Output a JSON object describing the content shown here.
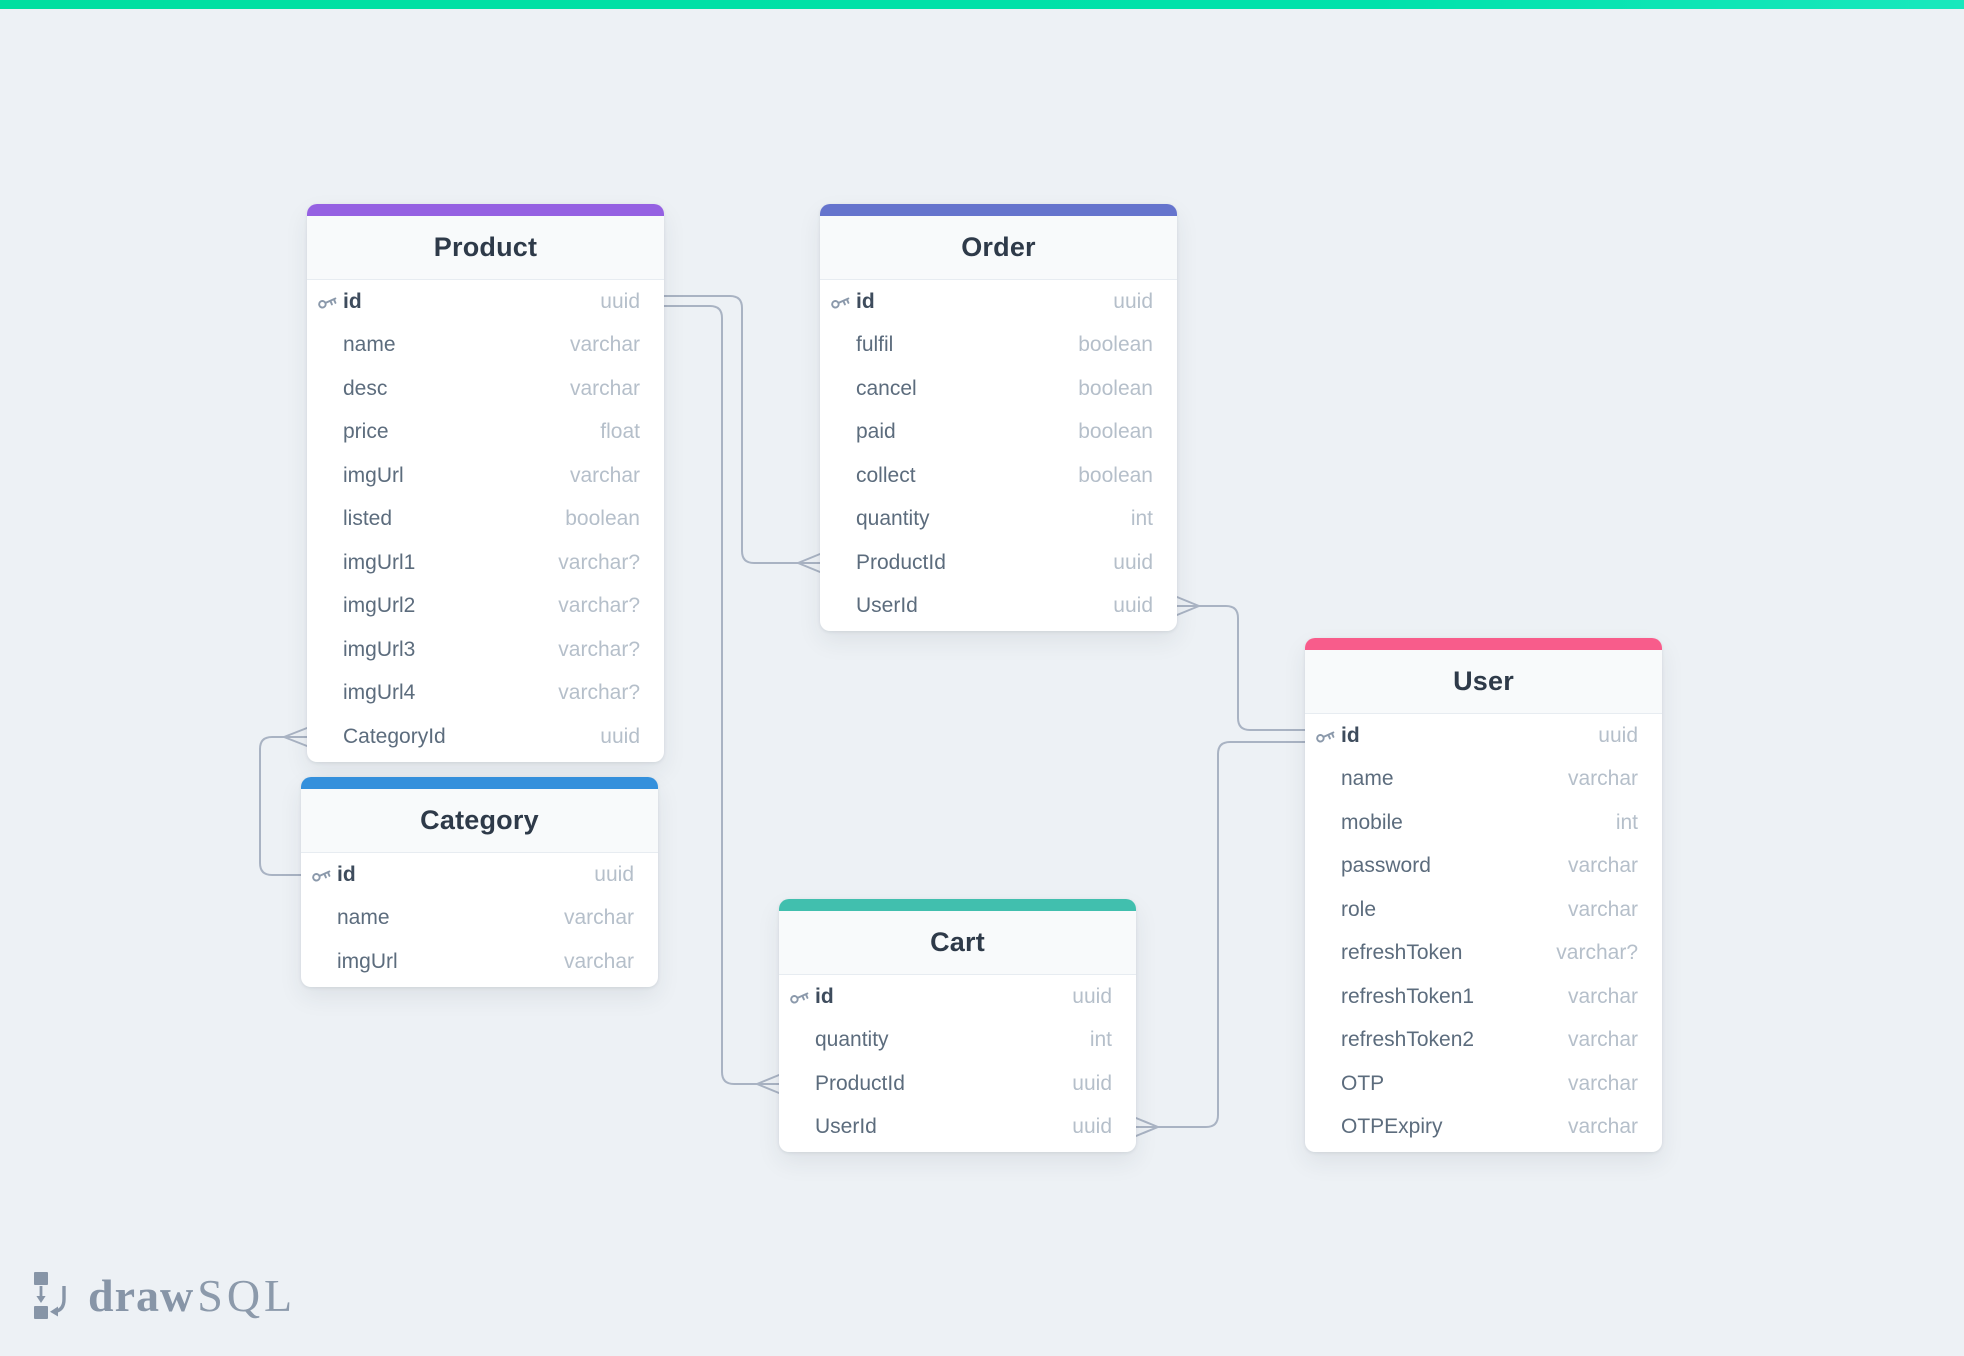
{
  "app": {
    "name": "drawSQL",
    "logo_draw": "draw",
    "logo_sql": "SQL"
  },
  "canvas": {
    "background_color": "#edf1f5",
    "top_bar_color": "#00dfa0",
    "relationship_line_color": "#a9b3c3"
  },
  "tables": [
    {
      "name": "Product",
      "accent": "#9561e2",
      "fields": [
        {
          "name": "id",
          "type": "uuid",
          "pk": true
        },
        {
          "name": "name",
          "type": "varchar"
        },
        {
          "name": "desc",
          "type": "varchar"
        },
        {
          "name": "price",
          "type": "float"
        },
        {
          "name": "imgUrl",
          "type": "varchar"
        },
        {
          "name": "listed",
          "type": "boolean"
        },
        {
          "name": "imgUrl1",
          "type": "varchar?"
        },
        {
          "name": "imgUrl2",
          "type": "varchar?"
        },
        {
          "name": "imgUrl3",
          "type": "varchar?"
        },
        {
          "name": "imgUrl4",
          "type": "varchar?"
        },
        {
          "name": "CategoryId",
          "type": "uuid"
        }
      ]
    },
    {
      "name": "Order",
      "accent": "#6574cd",
      "fields": [
        {
          "name": "id",
          "type": "uuid",
          "pk": true
        },
        {
          "name": "fulfil",
          "type": "boolean"
        },
        {
          "name": "cancel",
          "type": "boolean"
        },
        {
          "name": "paid",
          "type": "boolean"
        },
        {
          "name": "collect",
          "type": "boolean"
        },
        {
          "name": "quantity",
          "type": "int"
        },
        {
          "name": "ProductId",
          "type": "uuid"
        },
        {
          "name": "UserId",
          "type": "uuid"
        }
      ]
    },
    {
      "name": "Category",
      "accent": "#3490dc",
      "fields": [
        {
          "name": "id",
          "type": "uuid",
          "pk": true
        },
        {
          "name": "name",
          "type": "varchar"
        },
        {
          "name": "imgUrl",
          "type": "varchar"
        }
      ]
    },
    {
      "name": "Cart",
      "accent": "#41bfae",
      "fields": [
        {
          "name": "id",
          "type": "uuid",
          "pk": true
        },
        {
          "name": "quantity",
          "type": "int"
        },
        {
          "name": "ProductId",
          "type": "uuid"
        },
        {
          "name": "UserId",
          "type": "uuid"
        }
      ]
    },
    {
      "name": "User",
      "accent": "#f85c8b",
      "fields": [
        {
          "name": "id",
          "type": "uuid",
          "pk": true
        },
        {
          "name": "name",
          "type": "varchar"
        },
        {
          "name": "mobile",
          "type": "int"
        },
        {
          "name": "password",
          "type": "varchar"
        },
        {
          "name": "role",
          "type": "varchar"
        },
        {
          "name": "refreshToken",
          "type": "varchar?"
        },
        {
          "name": "refreshToken1",
          "type": "varchar"
        },
        {
          "name": "refreshToken2",
          "type": "varchar"
        },
        {
          "name": "OTP",
          "type": "varchar"
        },
        {
          "name": "OTPExpiry",
          "type": "varchar"
        }
      ]
    }
  ],
  "relationships": [
    {
      "from_table": "Product",
      "from_field": "CategoryId",
      "to_table": "Category",
      "to_field": "id",
      "many_side": "Product"
    },
    {
      "from_table": "Order",
      "from_field": "ProductId",
      "to_table": "Product",
      "to_field": "id",
      "many_side": "Order"
    },
    {
      "from_table": "Cart",
      "from_field": "ProductId",
      "to_table": "Product",
      "to_field": "id",
      "many_side": "Cart"
    },
    {
      "from_table": "Order",
      "from_field": "UserId",
      "to_table": "User",
      "to_field": "id",
      "many_side": "Order"
    },
    {
      "from_table": "Cart",
      "from_field": "UserId",
      "to_table": "User",
      "to_field": "id",
      "many_side": "Cart"
    }
  ]
}
